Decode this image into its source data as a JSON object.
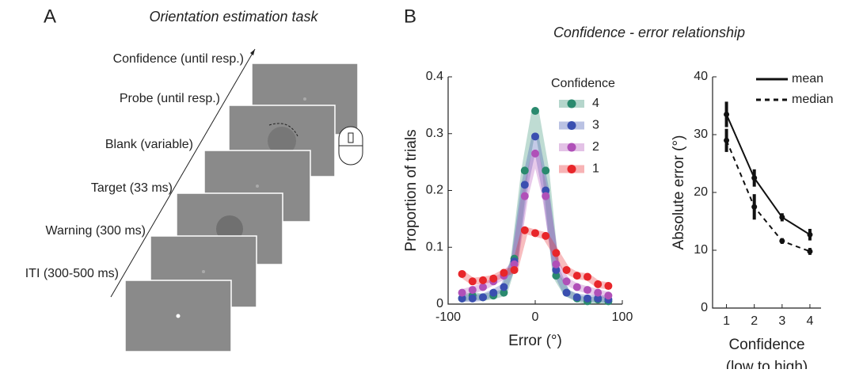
{
  "panel_a": {
    "label": "A",
    "title": "Orientation estimation task",
    "steps": [
      "Confidence (until resp.)",
      "Probe (until resp.)",
      "Blank (variable)",
      "Target (33 ms)",
      "Warning (300 ms)",
      "ITI (300-500 ms)"
    ]
  },
  "panel_b": {
    "label": "B",
    "title": "Confidence - error relationship"
  },
  "chart_data": [
    {
      "type": "line",
      "xlabel": "Error (°)",
      "ylabel": "Proportion of trials",
      "legend_title": "Confidence",
      "x": [
        -84,
        -72,
        -60,
        -48,
        -36,
        -24,
        -12,
        0,
        12,
        24,
        36,
        48,
        60,
        72,
        84
      ],
      "xlim": [
        -100,
        100
      ],
      "xticks": [
        -100,
        0,
        100
      ],
      "ylim": [
        0,
        0.4
      ],
      "yticks": [
        0,
        0.1,
        0.2,
        0.3,
        0.4
      ],
      "series": [
        {
          "name": "4",
          "color": "#2a8a6e",
          "values": [
            0.01,
            0.015,
            0.012,
            0.015,
            0.02,
            0.08,
            0.235,
            0.34,
            0.235,
            0.05,
            0.02,
            0.01,
            0.005,
            0.008,
            0.005
          ]
        },
        {
          "name": "3",
          "color": "#3a4fb0",
          "values": [
            0.01,
            0.01,
            0.012,
            0.02,
            0.03,
            0.075,
            0.21,
            0.295,
            0.2,
            0.06,
            0.02,
            0.012,
            0.01,
            0.01,
            0.008
          ]
        },
        {
          "name": "2",
          "color": "#b050b8",
          "values": [
            0.02,
            0.025,
            0.03,
            0.04,
            0.05,
            0.07,
            0.19,
            0.265,
            0.19,
            0.07,
            0.04,
            0.03,
            0.025,
            0.02,
            0.015
          ]
        },
        {
          "name": "1",
          "color": "#e8262a",
          "values": [
            0.053,
            0.04,
            0.042,
            0.045,
            0.055,
            0.06,
            0.13,
            0.125,
            0.12,
            0.09,
            0.06,
            0.05,
            0.048,
            0.035,
            0.032
          ]
        }
      ]
    },
    {
      "type": "errorline",
      "xlabel": [
        "Confidence",
        "(low to high)"
      ],
      "ylabel": "Absolute error (°)",
      "x": [
        1,
        2,
        3,
        4
      ],
      "xlim": [
        0.5,
        4.4
      ],
      "xticks": [
        1,
        2,
        3,
        4
      ],
      "ylim": [
        0,
        40
      ],
      "yticks": [
        0,
        10,
        20,
        30,
        40
      ],
      "series": [
        {
          "name": "mean",
          "color": "#111111",
          "dash": false,
          "values": [
            33.5,
            22.5,
            15.7,
            12.7
          ],
          "errors": [
            2.2,
            1.5,
            0.7,
            1
          ]
        },
        {
          "name": "median",
          "color": "#111111",
          "dash": true,
          "values": [
            29,
            17.5,
            11.6,
            9.8
          ],
          "errors": [
            2,
            2.2,
            0.5,
            0.6
          ]
        }
      ]
    }
  ]
}
